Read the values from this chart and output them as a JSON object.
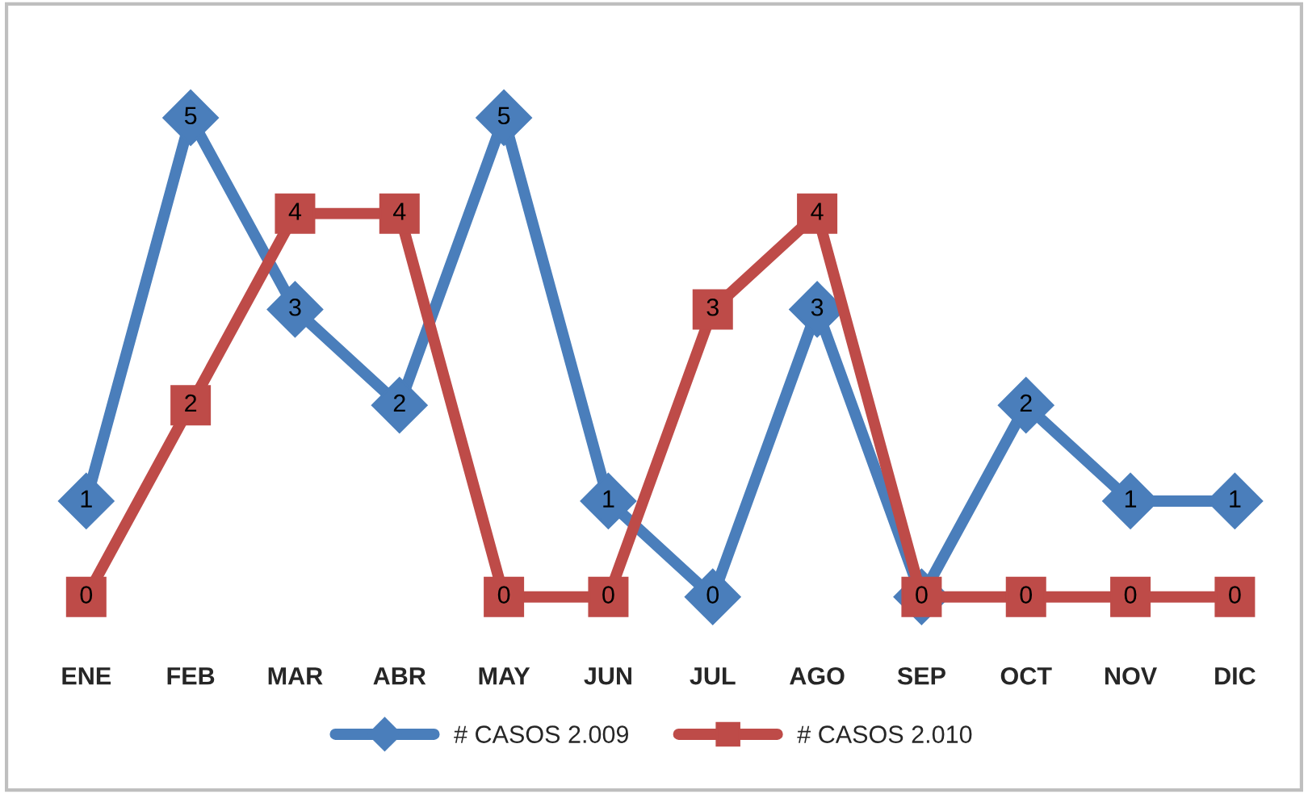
{
  "chart_data": {
    "type": "line",
    "categories": [
      "ENE",
      "FEB",
      "MAR",
      "ABR",
      "MAY",
      "JUN",
      "JUL",
      "AGO",
      "SEP",
      "OCT",
      "NOV",
      "DIC"
    ],
    "series": [
      {
        "name": "# CASOS 2.009",
        "color": "#4a7ebb",
        "marker": "diamond",
        "values": [
          1,
          5,
          3,
          2,
          5,
          1,
          0,
          3,
          0,
          2,
          1,
          1
        ],
        "value_labels": [
          "1",
          "5",
          "3",
          "2",
          "5",
          "1",
          "0",
          "3",
          null,
          "2",
          "1",
          "1"
        ]
      },
      {
        "name": "# CASOS 2.010",
        "color": "#be4b48",
        "marker": "square",
        "values": [
          0,
          2,
          4,
          4,
          0,
          0,
          3,
          4,
          0,
          0,
          0,
          0
        ],
        "value_labels": [
          "0",
          "2",
          "4",
          "4",
          "0",
          "0",
          "3",
          "4",
          "0",
          "0",
          "0",
          "0"
        ]
      }
    ],
    "legend": "bottom",
    "grid": false,
    "line_style": "solid"
  }
}
